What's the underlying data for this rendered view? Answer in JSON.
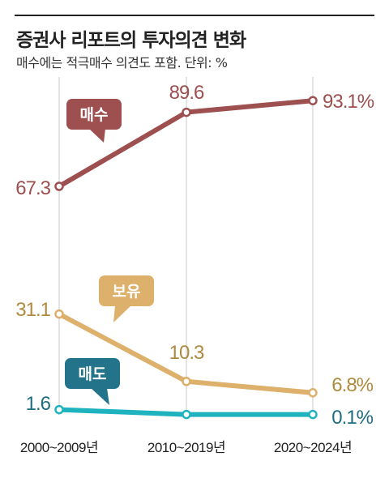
{
  "title": "증권사 리포트의 투자의견 변화",
  "subtitle": "매수에는 적극매수 의견도 포함. 단위: %",
  "chart_data": {
    "type": "line",
    "categories": [
      "2000~2009년",
      "2010~2019년",
      "2020~2024년"
    ],
    "ylim": [
      0,
      100
    ],
    "grid": "vertical",
    "series": [
      {
        "name": "매수",
        "values": [
          67.3,
          89.6,
          93.1
        ],
        "labels": [
          "67.3",
          "89.6",
          "93.1%"
        ],
        "color": "#9e4f4f"
      },
      {
        "name": "보유",
        "values": [
          31.1,
          10.3,
          6.8
        ],
        "labels": [
          "31.1",
          "10.3",
          "6.8%"
        ],
        "color": "#ddb06c",
        "label_color": "#b08a3e"
      },
      {
        "name": "매도",
        "values": [
          1.6,
          0.1,
          0.1
        ],
        "labels": [
          "1.6",
          "",
          "0.1%"
        ],
        "color": "#1fb3bf",
        "label_color": "#1e6d80",
        "bubble_color": "#23748a"
      }
    ]
  }
}
